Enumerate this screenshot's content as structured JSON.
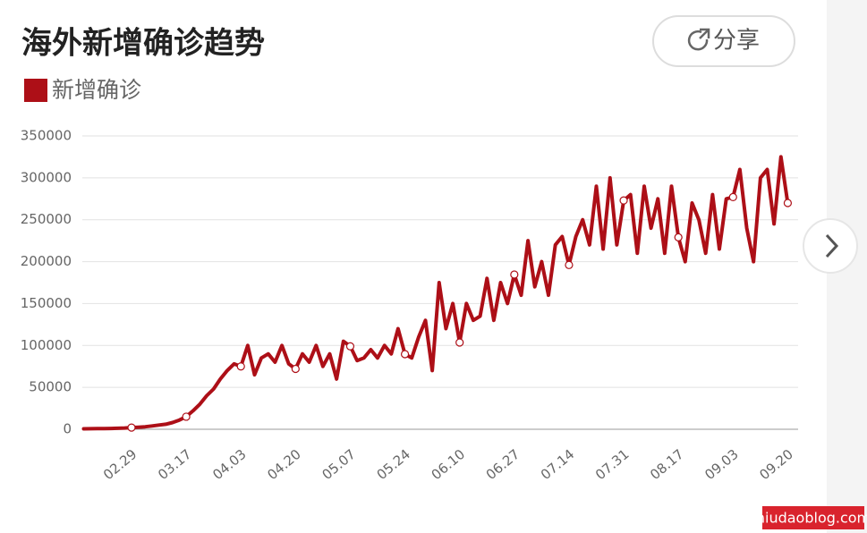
{
  "chart_data": {
    "type": "line",
    "title": "海外新增确诊趋势",
    "categories": [
      null,
      null,
      null,
      null,
      null,
      null,
      null,
      "02.29",
      null,
      null,
      null,
      null,
      null,
      null,
      null,
      "03.17",
      null,
      null,
      null,
      null,
      null,
      null,
      null,
      "04.03",
      null,
      null,
      null,
      null,
      null,
      null,
      null,
      "04.20",
      null,
      null,
      null,
      null,
      null,
      null,
      null,
      "05.07",
      null,
      null,
      null,
      null,
      null,
      null,
      null,
      "05.24",
      null,
      null,
      null,
      null,
      null,
      null,
      null,
      "06.10",
      null,
      null,
      null,
      null,
      null,
      null,
      null,
      "06.27",
      null,
      null,
      null,
      null,
      null,
      null,
      null,
      "07.14",
      null,
      null,
      null,
      null,
      null,
      null,
      null,
      "07.31",
      null,
      null,
      null,
      null,
      null,
      null,
      null,
      "08.17",
      null,
      null,
      null,
      null,
      null,
      null,
      null,
      "09.03",
      null,
      null,
      null,
      null,
      null,
      null,
      null,
      "09.20"
    ],
    "series": [
      {
        "name": "新增确诊",
        "color": "#ad0f17",
        "values": [
          500,
          600,
          700,
          800,
          1000,
          1200,
          1500,
          2000,
          2500,
          3000,
          4000,
          5000,
          6000,
          8000,
          11000,
          15000,
          22000,
          30000,
          40000,
          48000,
          60000,
          70000,
          78000,
          75000,
          100000,
          65000,
          85000,
          90000,
          80000,
          100000,
          78000,
          72000,
          90000,
          80000,
          100000,
          75000,
          90000,
          60000,
          105000,
          99000,
          82000,
          85000,
          95000,
          85000,
          100000,
          90000,
          120000,
          89600,
          85000,
          110000,
          130000,
          70000,
          175000,
          120000,
          150000,
          103500,
          150000,
          130000,
          135000,
          180000,
          130000,
          175000,
          150000,
          184600,
          160000,
          225000,
          170000,
          200000,
          160000,
          220000,
          230000,
          196000,
          230000,
          250000,
          220000,
          290000,
          215000,
          300000,
          220000,
          273000,
          280000,
          210000,
          290000,
          240000,
          275000,
          210000,
          290000,
          229000,
          200000,
          270000,
          250000,
          210000,
          280000,
          215000,
          275000,
          277000,
          310000,
          240000,
          200000,
          300000,
          310000,
          245000,
          325000,
          270000
        ]
      }
    ],
    "ylim": [
      0,
      350000
    ],
    "yticks": [
      0,
      50000,
      100000,
      150000,
      200000,
      250000,
      300000,
      350000
    ],
    "grid": true
  },
  "share_button": {
    "label": "分享"
  },
  "watermark": "niudaoblog.com"
}
